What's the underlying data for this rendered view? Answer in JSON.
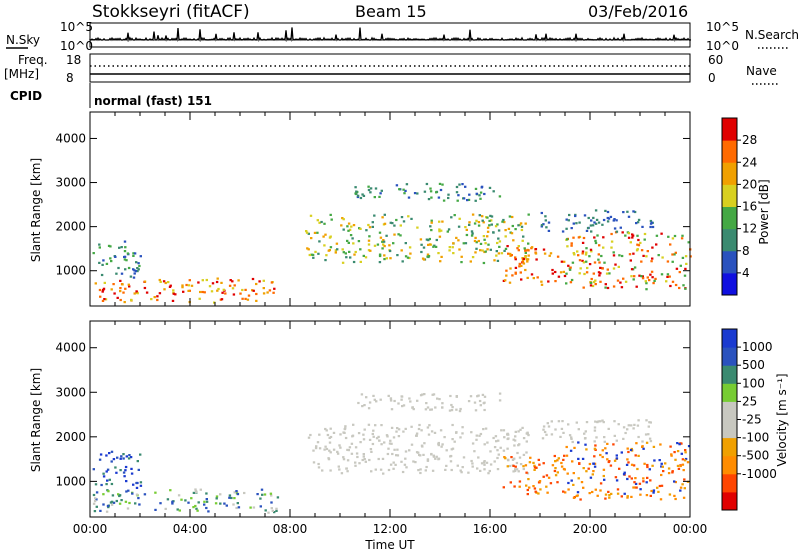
{
  "header": {
    "station": "Stokkseyri (fitACF)",
    "beam": "Beam 15",
    "date": "03/Feb/2016"
  },
  "top_panels": {
    "nsky_label": "N.Sky",
    "nsky_tick_top": "10^5",
    "nsky_tick_bottom": "10^0",
    "nsearch_label": "N.Search",
    "nsearch_tick_top": "10^5",
    "nsearch_tick_bottom": "10^0",
    "freq_label_1": "Freq.",
    "freq_label_2": "[MHz]",
    "freq_tick_top": "18",
    "freq_tick_bottom": "8",
    "nave_label": "Nave",
    "nave_tick_top": "60",
    "nave_tick_bottom": "0",
    "cpid_label": "CPID",
    "cpid_value": "normal (fast) 151"
  },
  "colors": {
    "power": [
      "#1010e0",
      "#2a52be",
      "#3a8a70",
      "#44a844",
      "#d8d020",
      "#f0a000",
      "#ff6a00",
      "#e00000"
    ],
    "velocity": [
      "#e00000",
      "#ff4500",
      "#ff8c00",
      "#f0a000",
      "#c8c8c0",
      "#c8c8c0",
      "#77cc33",
      "#3a8a70",
      "#2a52be",
      "#1a3ad0"
    ]
  },
  "chart_data": [
    {
      "type": "heatmap",
      "name": "Power",
      "ylabel": "Slant Range [km]",
      "yticks": [
        "1000",
        "2000",
        "3000",
        "4000"
      ],
      "ylim": [
        200,
        4600
      ],
      "xlim_hours": [
        0,
        24
      ],
      "colorbar_label": "Power [dB]",
      "colorbar_ticks": [
        "4",
        "8",
        "12",
        "16",
        "20",
        "24",
        "28"
      ],
      "colorbar_range": [
        0,
        30
      ]
    },
    {
      "type": "heatmap",
      "name": "Velocity",
      "ylabel": "Slant Range [km]",
      "yticks": [
        "1000",
        "2000",
        "3000",
        "4000"
      ],
      "ylim": [
        200,
        4600
      ],
      "xlim_hours": [
        0,
        24
      ],
      "xlabel": "Time UT",
      "xticks": [
        "00:00",
        "04:00",
        "08:00",
        "12:00",
        "16:00",
        "20:00",
        "00:00"
      ],
      "colorbar_label": "Velocity [m s⁻¹]",
      "colorbar_ticks": [
        "1000",
        "500",
        "100",
        "25",
        "-25",
        "-100",
        "-500",
        "-1000"
      ]
    }
  ]
}
